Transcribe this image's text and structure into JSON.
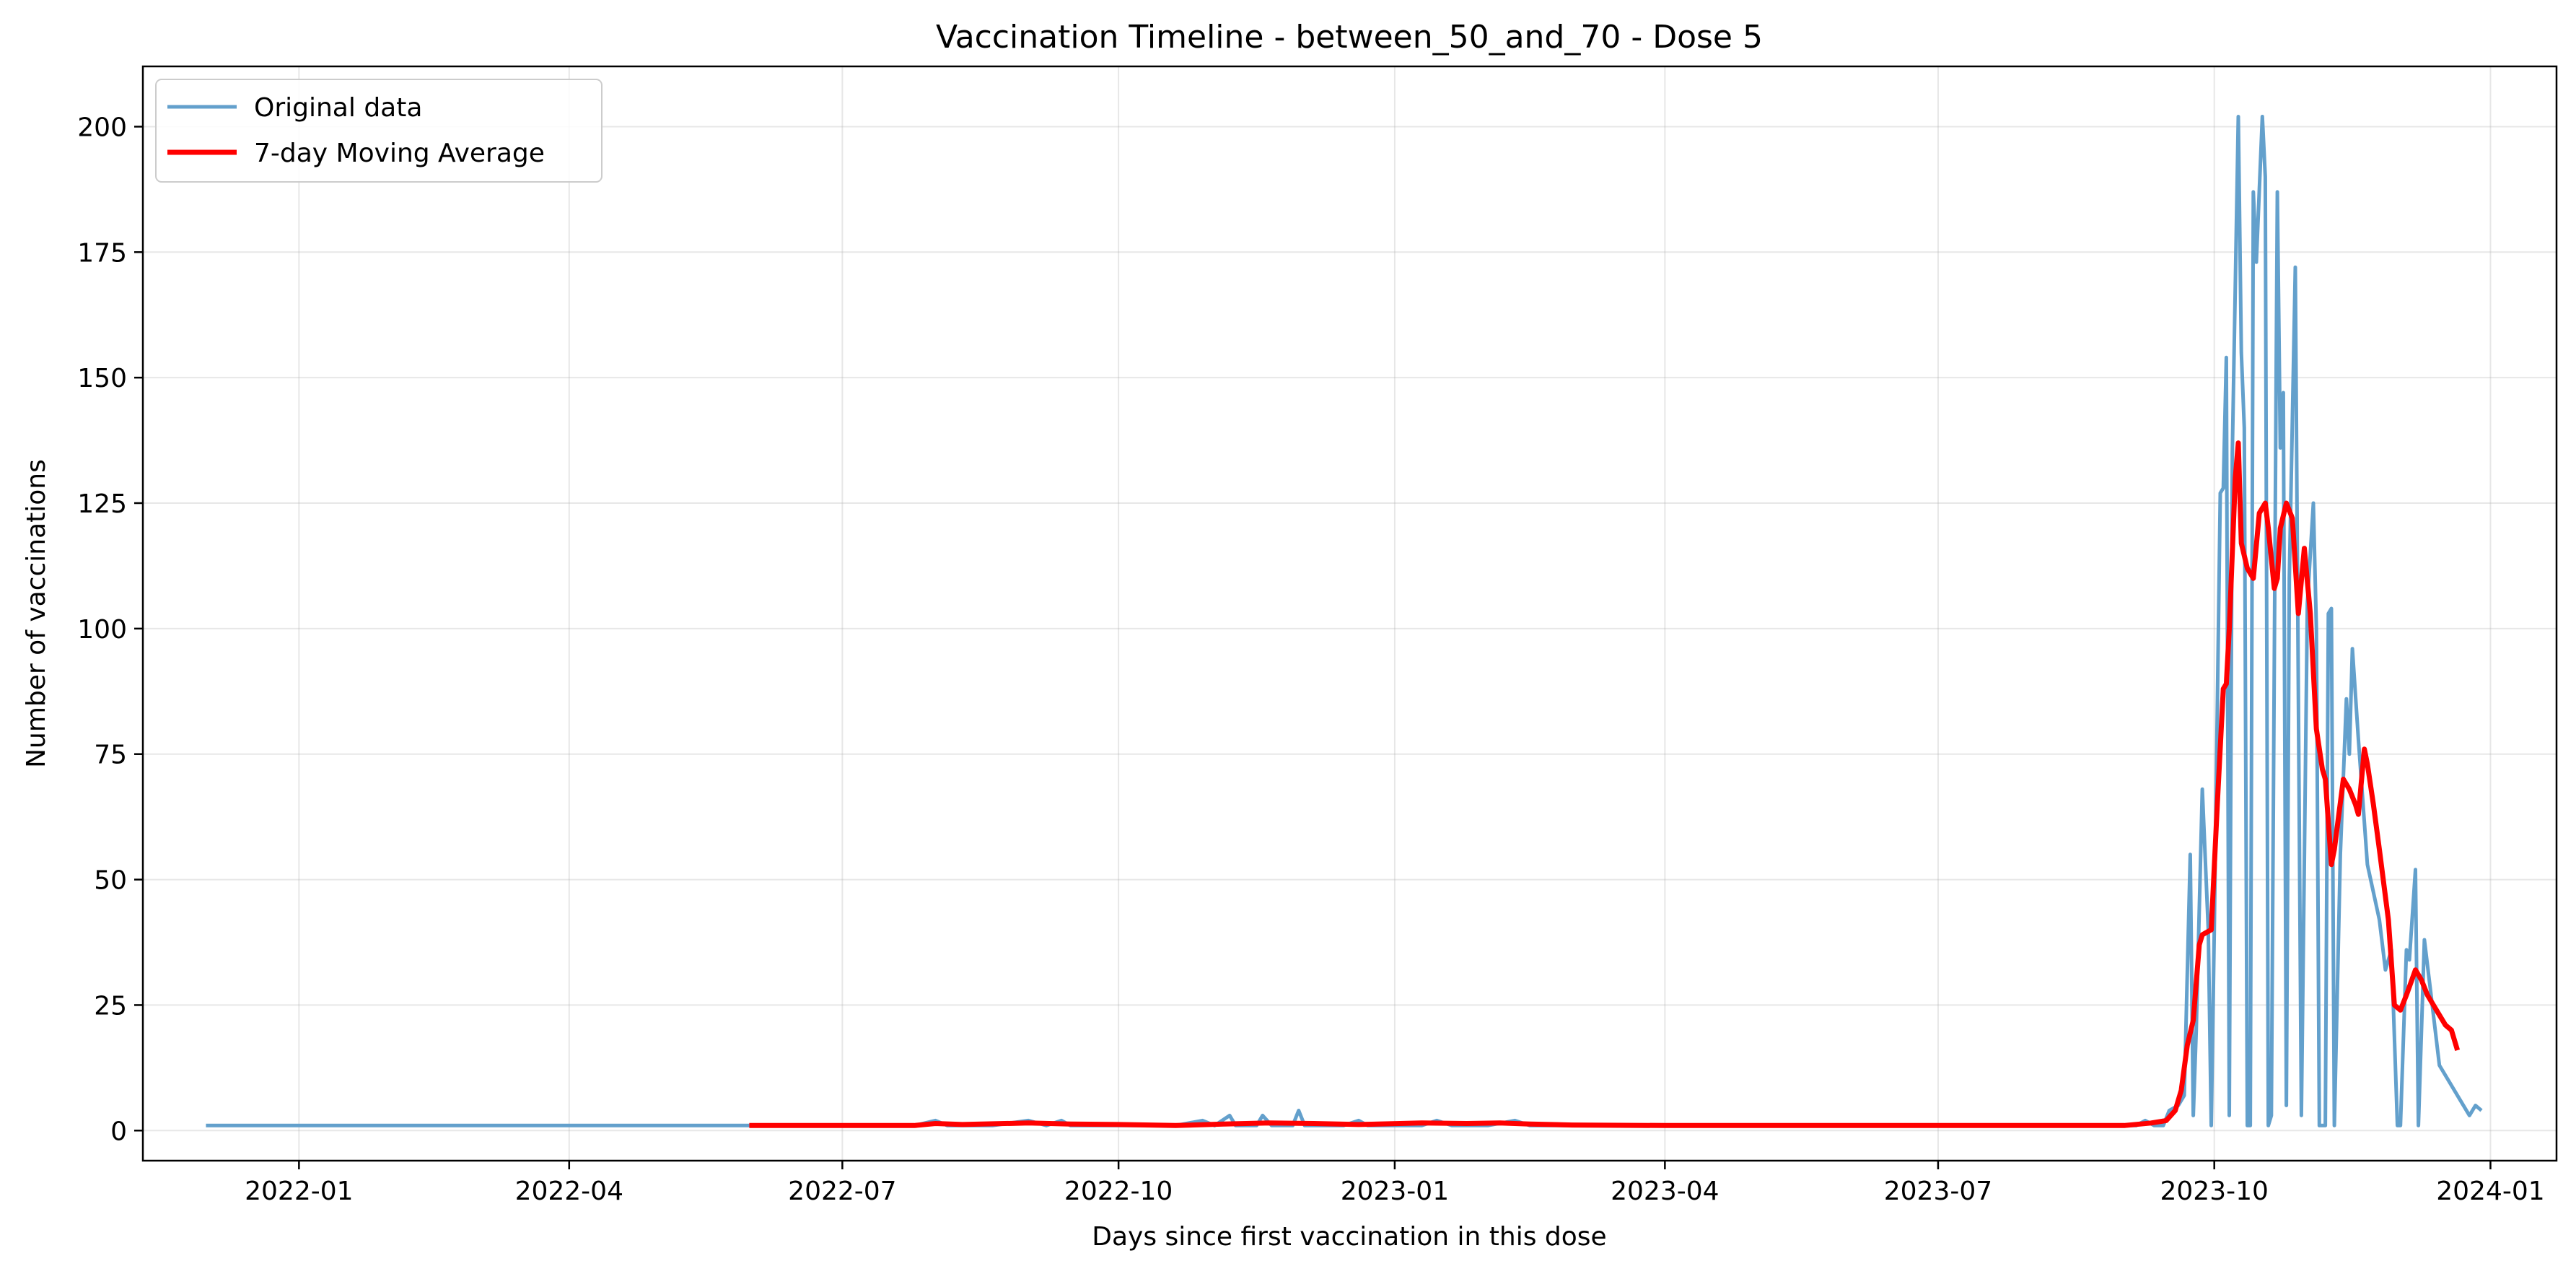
{
  "chart_data": {
    "type": "line",
    "title": "Vaccination Timeline - between_50_and_70 - Dose 5",
    "xlabel": "Days since first vaccination in this dose",
    "ylabel": "Number of vaccinations",
    "x_ticks": [
      "2022-01",
      "2022-04",
      "2022-07",
      "2022-10",
      "2023-01",
      "2023-04",
      "2023-07",
      "2023-10",
      "2024-01"
    ],
    "y_ticks": [
      "0",
      "25",
      "50",
      "75",
      "100",
      "125",
      "150",
      "175",
      "200"
    ],
    "xlim": [
      "2021-11-10",
      "2024-01-23"
    ],
    "ylim": [
      -6,
      212
    ],
    "grid": true,
    "legend_position": "top-left",
    "colors": {
      "original": "#5b9bc9",
      "moving_average": "#ff0000"
    },
    "series": [
      {
        "name": "Original data",
        "points": [
          [
            "2021-12-01",
            1
          ],
          [
            "2022-03-01",
            1
          ],
          [
            "2022-05-31",
            1
          ],
          [
            "2022-06-30",
            1
          ],
          [
            "2022-07-25",
            1
          ],
          [
            "2022-08-01",
            2
          ],
          [
            "2022-08-05",
            1
          ],
          [
            "2022-08-20",
            1
          ],
          [
            "2022-09-01",
            2
          ],
          [
            "2022-09-07",
            1
          ],
          [
            "2022-09-12",
            2
          ],
          [
            "2022-09-15",
            1
          ],
          [
            "2022-10-01",
            1
          ],
          [
            "2022-10-20",
            1
          ],
          [
            "2022-10-29",
            2
          ],
          [
            "2022-11-02",
            1
          ],
          [
            "2022-11-07",
            3
          ],
          [
            "2022-11-09",
            1
          ],
          [
            "2022-11-16",
            1
          ],
          [
            "2022-11-18",
            3
          ],
          [
            "2022-11-21",
            1
          ],
          [
            "2022-11-28",
            1
          ],
          [
            "2022-11-30",
            4
          ],
          [
            "2022-12-02",
            1
          ],
          [
            "2022-12-15",
            1
          ],
          [
            "2022-12-20",
            2
          ],
          [
            "2022-12-23",
            1
          ],
          [
            "2023-01-10",
            1
          ],
          [
            "2023-01-15",
            2
          ],
          [
            "2023-01-20",
            1
          ],
          [
            "2023-02-01",
            1
          ],
          [
            "2023-02-10",
            2
          ],
          [
            "2023-02-15",
            1
          ],
          [
            "2023-03-01",
            1
          ],
          [
            "2023-04-01",
            1
          ],
          [
            "2023-06-01",
            1
          ],
          [
            "2023-09-05",
            1
          ],
          [
            "2023-09-08",
            2
          ],
          [
            "2023-09-11",
            1
          ],
          [
            "2023-09-14",
            1
          ],
          [
            "2023-09-16",
            4
          ],
          [
            "2023-09-19",
            5
          ],
          [
            "2023-09-21",
            7
          ],
          [
            "2023-09-23",
            55
          ],
          [
            "2023-09-24",
            3
          ],
          [
            "2023-09-25",
            20
          ],
          [
            "2023-09-27",
            68
          ],
          [
            "2023-09-29",
            40
          ],
          [
            "2023-09-30",
            1
          ],
          [
            "2023-10-01",
            40
          ],
          [
            "2023-10-03",
            127
          ],
          [
            "2023-10-04",
            128
          ],
          [
            "2023-10-05",
            154
          ],
          [
            "2023-10-06",
            3
          ],
          [
            "2023-10-07",
            135
          ],
          [
            "2023-10-09",
            202
          ],
          [
            "2023-10-10",
            155
          ],
          [
            "2023-10-11",
            140
          ],
          [
            "2023-10-12",
            1
          ],
          [
            "2023-10-13",
            1
          ],
          [
            "2023-10-14",
            187
          ],
          [
            "2023-10-15",
            173
          ],
          [
            "2023-10-17",
            202
          ],
          [
            "2023-10-18",
            190
          ],
          [
            "2023-10-19",
            1
          ],
          [
            "2023-10-20",
            3
          ],
          [
            "2023-10-22",
            187
          ],
          [
            "2023-10-23",
            136
          ],
          [
            "2023-10-24",
            147
          ],
          [
            "2023-10-25",
            5
          ],
          [
            "2023-10-26",
            110
          ],
          [
            "2023-10-28",
            172
          ],
          [
            "2023-10-30",
            3
          ],
          [
            "2023-11-01",
            105
          ],
          [
            "2023-11-03",
            125
          ],
          [
            "2023-11-04",
            100
          ],
          [
            "2023-11-05",
            1
          ],
          [
            "2023-11-07",
            1
          ],
          [
            "2023-11-08",
            103
          ],
          [
            "2023-11-09",
            104
          ],
          [
            "2023-11-10",
            1
          ],
          [
            "2023-11-12",
            55
          ],
          [
            "2023-11-14",
            86
          ],
          [
            "2023-11-15",
            75
          ],
          [
            "2023-11-16",
            96
          ],
          [
            "2023-11-18",
            78
          ],
          [
            "2023-11-21",
            53
          ],
          [
            "2023-11-25",
            42
          ],
          [
            "2023-11-27",
            32
          ],
          [
            "2023-11-29",
            36
          ],
          [
            "2023-12-01",
            1
          ],
          [
            "2023-12-02",
            1
          ],
          [
            "2023-12-04",
            36
          ],
          [
            "2023-12-05",
            34
          ],
          [
            "2023-12-07",
            52
          ],
          [
            "2023-12-08",
            1
          ],
          [
            "2023-12-10",
            38
          ],
          [
            "2023-12-12",
            28
          ],
          [
            "2023-12-15",
            13
          ],
          [
            "2023-12-25",
            3
          ],
          [
            "2023-12-27",
            5
          ],
          [
            "2023-12-29",
            4
          ]
        ]
      },
      {
        "name": "7-day Moving Average",
        "points": [
          [
            "2022-05-31",
            1
          ],
          [
            "2022-07-25",
            1
          ],
          [
            "2022-08-01",
            1.4
          ],
          [
            "2022-08-10",
            1.2
          ],
          [
            "2022-09-01",
            1.5
          ],
          [
            "2022-09-15",
            1.3
          ],
          [
            "2022-10-01",
            1.2
          ],
          [
            "2022-10-20",
            1
          ],
          [
            "2022-11-05",
            1.3
          ],
          [
            "2022-11-20",
            1.5
          ],
          [
            "2022-12-05",
            1.4
          ],
          [
            "2022-12-20",
            1.2
          ],
          [
            "2023-01-10",
            1.5
          ],
          [
            "2023-01-25",
            1.4
          ],
          [
            "2023-02-05",
            1.5
          ],
          [
            "2023-02-15",
            1.3
          ],
          [
            "2023-03-01",
            1.1
          ],
          [
            "2023-04-01",
            1
          ],
          [
            "2023-09-01",
            1
          ],
          [
            "2023-09-10",
            1.5
          ],
          [
            "2023-09-15",
            2
          ],
          [
            "2023-09-18",
            4
          ],
          [
            "2023-09-20",
            8
          ],
          [
            "2023-09-22",
            17
          ],
          [
            "2023-09-24",
            22
          ],
          [
            "2023-09-26",
            37
          ],
          [
            "2023-09-27",
            39
          ],
          [
            "2023-09-30",
            40
          ],
          [
            "2023-10-02",
            65
          ],
          [
            "2023-10-04",
            88
          ],
          [
            "2023-10-05",
            89
          ],
          [
            "2023-10-06",
            100
          ],
          [
            "2023-10-08",
            130
          ],
          [
            "2023-10-09",
            137
          ],
          [
            "2023-10-10",
            117
          ],
          [
            "2023-10-12",
            112
          ],
          [
            "2023-10-14",
            110
          ],
          [
            "2023-10-16",
            123
          ],
          [
            "2023-10-18",
            125
          ],
          [
            "2023-10-19",
            120
          ],
          [
            "2023-10-21",
            108
          ],
          [
            "2023-10-22",
            110
          ],
          [
            "2023-10-23",
            120
          ],
          [
            "2023-10-25",
            125
          ],
          [
            "2023-10-27",
            122
          ],
          [
            "2023-10-29",
            103
          ],
          [
            "2023-10-31",
            116
          ],
          [
            "2023-11-02",
            103
          ],
          [
            "2023-11-04",
            80
          ],
          [
            "2023-11-06",
            72
          ],
          [
            "2023-11-07",
            70
          ],
          [
            "2023-11-09",
            53
          ],
          [
            "2023-11-10",
            56
          ],
          [
            "2023-11-13",
            70
          ],
          [
            "2023-11-15",
            68
          ],
          [
            "2023-11-17",
            65
          ],
          [
            "2023-11-18",
            63
          ],
          [
            "2023-11-20",
            76
          ],
          [
            "2023-11-21",
            73
          ],
          [
            "2023-11-23",
            65
          ],
          [
            "2023-11-25",
            56
          ],
          [
            "2023-11-28",
            42
          ],
          [
            "2023-11-30",
            25
          ],
          [
            "2023-12-02",
            24
          ],
          [
            "2023-12-04",
            27
          ],
          [
            "2023-12-07",
            32
          ],
          [
            "2023-12-09",
            30
          ],
          [
            "2023-12-11",
            27
          ],
          [
            "2023-12-14",
            24
          ],
          [
            "2023-12-17",
            21
          ],
          [
            "2023-12-19",
            20
          ],
          [
            "2023-12-21",
            16
          ]
        ]
      }
    ]
  }
}
